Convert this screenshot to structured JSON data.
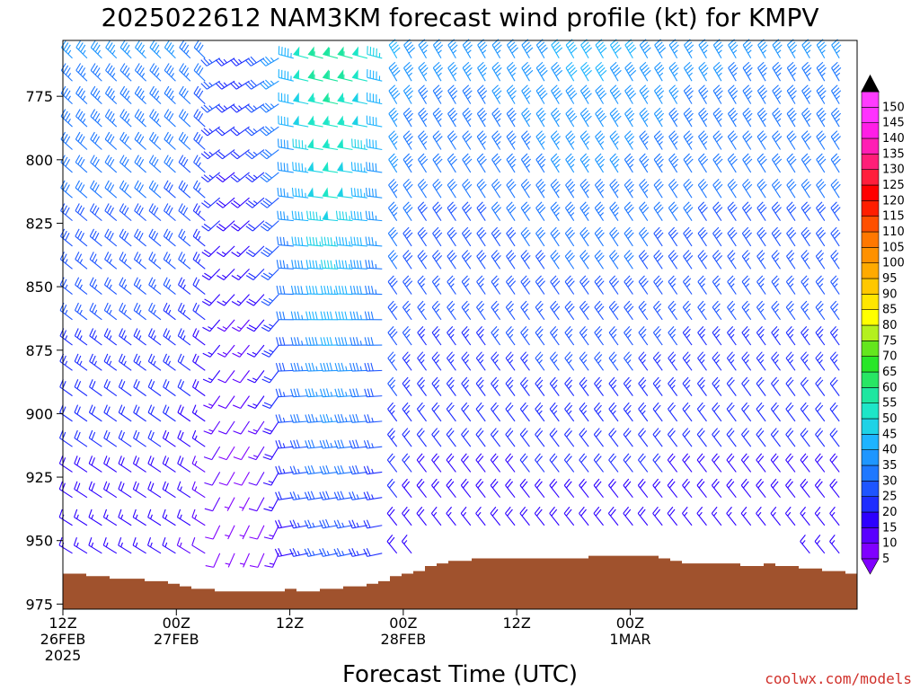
{
  "chart_data": {
    "type": "wind-barb profile",
    "title": "2025022612 NAM3KM forecast wind profile (kt) for KMPV",
    "xlabel": "Forecast Time (UTC)",
    "ylabel": "",
    "credit": "coolwx.com/models",
    "x_range_hours": [
      0,
      84
    ],
    "y_range_hpa": [
      977,
      753
    ],
    "y_ticks": [
      775,
      800,
      825,
      850,
      875,
      900,
      925,
      950,
      975
    ],
    "x_ticks": [
      {
        "hour": 0,
        "lines": [
          "12Z",
          "26FEB",
          "2025"
        ]
      },
      {
        "hour": 12,
        "lines": [
          "00Z",
          "27FEB"
        ]
      },
      {
        "hour": 24,
        "lines": [
          "12Z"
        ]
      },
      {
        "hour": 36,
        "lines": [
          "00Z",
          "28FEB"
        ]
      },
      {
        "hour": 48,
        "lines": [
          "12Z"
        ]
      },
      {
        "hour": 60,
        "lines": [
          "00Z",
          "1MAR"
        ]
      }
    ],
    "barb_levels_hpa": [
      760,
      769,
      778,
      787,
      796,
      805,
      815,
      824,
      834,
      843,
      853,
      863,
      873,
      883,
      893,
      903,
      913,
      923,
      933,
      944,
      955,
      966
    ],
    "speed_colorbar": {
      "levels": [
        5,
        10,
        15,
        20,
        25,
        30,
        35,
        40,
        45,
        50,
        55,
        60,
        65,
        70,
        75,
        80,
        85,
        90,
        95,
        100,
        105,
        110,
        115,
        120,
        125,
        130,
        135,
        140,
        145,
        150
      ],
      "colors": [
        "#8000ff",
        "#5a00ff",
        "#2d00ff",
        "#1e2dff",
        "#1e55ff",
        "#1e78ff",
        "#1e96ff",
        "#1eb4ff",
        "#1ed2e6",
        "#1ee6c8",
        "#1ee6a0",
        "#28e664",
        "#28e628",
        "#64e61e",
        "#b4f01e",
        "#ffff00",
        "#ffe600",
        "#ffc800",
        "#ffaa00",
        "#ff9100",
        "#ff7800",
        "#ff5000",
        "#ff1e00",
        "#ff0000",
        "#ff1e3c",
        "#ff1e78",
        "#ff1eb4",
        "#ff1ee6",
        "#ff32ff",
        "#ff3cff"
      ]
    },
    "terrain": {
      "color": "#a0522d",
      "surface_pressure_hpa": [
        963,
        963,
        964,
        964,
        965,
        965,
        965,
        966,
        966,
        967,
        968,
        969,
        969,
        970,
        970,
        970,
        970,
        970,
        970,
        969,
        970,
        970,
        969,
        969,
        968,
        968,
        967,
        966,
        964,
        963,
        962,
        960,
        959,
        958,
        958,
        957,
        957,
        957,
        957,
        957,
        957,
        957,
        957,
        957,
        957,
        956,
        956,
        956,
        956,
        956,
        956,
        957,
        958,
        959,
        959,
        959,
        959,
        959,
        960,
        960,
        959,
        960,
        960,
        961,
        961,
        962,
        962,
        963
      ]
    }
  }
}
